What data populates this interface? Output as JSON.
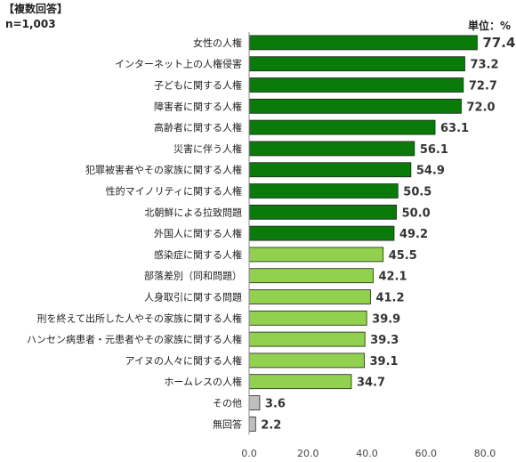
{
  "header": {
    "question": "【複数回答】",
    "sample": "n=1,003",
    "unit": "単位：%"
  },
  "colors": {
    "top_bar": "#0a7a0a",
    "mid_bar": "#92d050",
    "other_bar": "#bfbfbf",
    "highlight_value": "#e60000"
  },
  "chart_data": {
    "type": "bar",
    "orientation": "horizontal",
    "categories": [
      "女性の人権",
      "インターネット上の人権侵害",
      "子どもに関する人権",
      "障害者に関する人権",
      "高齢者に関する人権",
      "災害に伴う人権",
      "犯罪被害者やその家族に関する人権",
      "性的マイノリティに関する人権",
      "北朝鮮による拉致問題",
      "外国人に関する人権",
      "感染症に関する人権",
      "部落差別（同和問題）",
      "人身取引に関する問題",
      "刑を終えて出所した人やその家族に関する人権",
      "ハンセン病患者・元患者やその家族に関する人権",
      "アイヌの人々に関する人権",
      "ホームレスの人権",
      "その他",
      "無回答"
    ],
    "values": [
      77.4,
      73.2,
      72.7,
      72.0,
      63.1,
      56.1,
      54.9,
      50.5,
      50.0,
      49.2,
      45.5,
      42.1,
      41.2,
      39.9,
      39.3,
      39.1,
      34.7,
      3.6,
      2.2
    ],
    "value_labels": [
      "77.4",
      "73.2",
      "72.7",
      "72.0",
      "63.1",
      "56.1",
      "54.9",
      "50.5",
      "50.0",
      "49.2",
      "45.5",
      "42.1",
      "41.2",
      "39.9",
      "39.3",
      "39.1",
      "34.7",
      "3.6",
      "2.2"
    ],
    "bar_color_group": [
      "top",
      "top",
      "top",
      "top",
      "top",
      "top",
      "top",
      "top",
      "top",
      "top",
      "mid",
      "mid",
      "mid",
      "mid",
      "mid",
      "mid",
      "mid",
      "other",
      "other"
    ],
    "x_ticks": [
      "0.0",
      "20.0",
      "40.0",
      "60.0",
      "80.0"
    ],
    "xlim": [
      0,
      80
    ],
    "gridlines": false
  }
}
